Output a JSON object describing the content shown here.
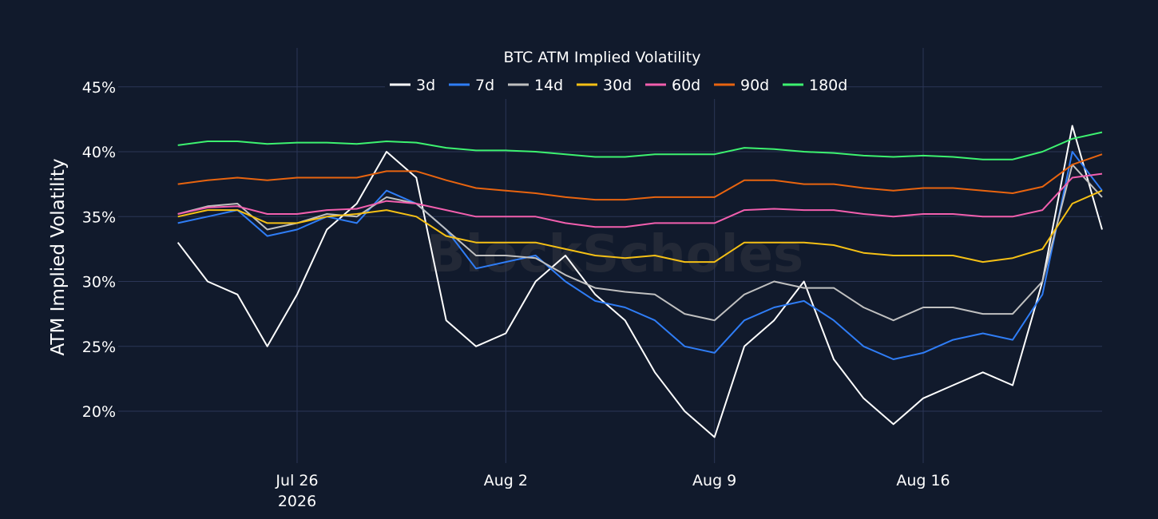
{
  "chart_data": {
    "type": "line",
    "title": "BTC ATM Implied Volatility",
    "ylabel": "ATM Implied Volatility",
    "xlabel": "",
    "watermark": "BlockScholes",
    "x_range": [
      "2026-07-20",
      "2026-08-22"
    ],
    "ylim": [
      0.16,
      0.48
    ],
    "y_ticks": [
      0.2,
      0.25,
      0.3,
      0.35,
      0.4,
      0.45
    ],
    "y_tick_labels": [
      "20%",
      "25%",
      "30%",
      "35%",
      "40%",
      "45%"
    ],
    "x_ticks": [
      "2026-07-26",
      "2026-08-02",
      "2026-08-09",
      "2026-08-16"
    ],
    "x_tick_labels": [
      {
        "line1": "Jul 26",
        "line2": "2026"
      },
      {
        "line1": "Aug 2",
        "line2": ""
      },
      {
        "line1": "Aug 9",
        "line2": ""
      },
      {
        "line1": "Aug 16",
        "line2": ""
      }
    ],
    "grid": true,
    "legend_position": "top-center",
    "x": [
      "2026-07-22",
      "2026-07-23",
      "2026-07-24",
      "2026-07-25",
      "2026-07-26",
      "2026-07-27",
      "2026-07-28",
      "2026-07-29",
      "2026-07-30",
      "2026-07-31",
      "2026-08-01",
      "2026-08-02",
      "2026-08-03",
      "2026-08-04",
      "2026-08-05",
      "2026-08-06",
      "2026-08-07",
      "2026-08-08",
      "2026-08-09",
      "2026-08-10",
      "2026-08-11",
      "2026-08-12",
      "2026-08-13",
      "2026-08-14",
      "2026-08-15",
      "2026-08-16",
      "2026-08-17",
      "2026-08-18",
      "2026-08-19",
      "2026-08-20",
      "2026-08-21",
      "2026-08-22"
    ],
    "series": [
      {
        "name": "3d",
        "color": "#ffffff",
        "values": [
          0.33,
          0.3,
          0.29,
          0.25,
          0.29,
          0.34,
          0.36,
          0.4,
          0.38,
          0.27,
          0.25,
          0.26,
          0.3,
          0.32,
          0.29,
          0.27,
          0.23,
          0.2,
          0.18,
          0.25,
          0.27,
          0.3,
          0.24,
          0.21,
          0.19,
          0.21,
          0.22,
          0.23,
          0.22,
          0.3,
          0.42,
          0.34
        ]
      },
      {
        "name": "7d",
        "color": "#2f7df6",
        "values": [
          0.345,
          0.35,
          0.355,
          0.335,
          0.34,
          0.35,
          0.345,
          0.37,
          0.36,
          0.34,
          0.31,
          0.315,
          0.32,
          0.3,
          0.285,
          0.28,
          0.27,
          0.25,
          0.245,
          0.27,
          0.28,
          0.285,
          0.27,
          0.25,
          0.24,
          0.245,
          0.255,
          0.26,
          0.255,
          0.29,
          0.4,
          0.37
        ]
      },
      {
        "name": "14d",
        "color": "#c0c0c0",
        "values": [
          0.352,
          0.358,
          0.36,
          0.34,
          0.345,
          0.352,
          0.35,
          0.365,
          0.36,
          0.34,
          0.32,
          0.32,
          0.318,
          0.305,
          0.295,
          0.292,
          0.29,
          0.275,
          0.27,
          0.29,
          0.3,
          0.295,
          0.295,
          0.28,
          0.27,
          0.28,
          0.28,
          0.275,
          0.275,
          0.3,
          0.39,
          0.365
        ]
      },
      {
        "name": "30d",
        "color": "#f5c015",
        "values": [
          0.35,
          0.355,
          0.355,
          0.345,
          0.345,
          0.35,
          0.352,
          0.355,
          0.35,
          0.335,
          0.33,
          0.33,
          0.33,
          0.325,
          0.32,
          0.318,
          0.32,
          0.315,
          0.315,
          0.33,
          0.33,
          0.33,
          0.328,
          0.322,
          0.32,
          0.32,
          0.32,
          0.315,
          0.318,
          0.325,
          0.36,
          0.37
        ]
      },
      {
        "name": "60d",
        "color": "#f25fae",
        "values": [
          0.352,
          0.357,
          0.358,
          0.352,
          0.352,
          0.355,
          0.356,
          0.362,
          0.36,
          0.355,
          0.35,
          0.35,
          0.35,
          0.345,
          0.342,
          0.342,
          0.345,
          0.345,
          0.345,
          0.355,
          0.356,
          0.355,
          0.355,
          0.352,
          0.35,
          0.352,
          0.352,
          0.35,
          0.35,
          0.355,
          0.38,
          0.383
        ]
      },
      {
        "name": "90d",
        "color": "#e8640f",
        "values": [
          0.375,
          0.378,
          0.38,
          0.378,
          0.38,
          0.38,
          0.38,
          0.385,
          0.385,
          0.378,
          0.372,
          0.37,
          0.368,
          0.365,
          0.363,
          0.363,
          0.365,
          0.365,
          0.365,
          0.378,
          0.378,
          0.375,
          0.375,
          0.372,
          0.37,
          0.372,
          0.372,
          0.37,
          0.368,
          0.373,
          0.39,
          0.398
        ]
      },
      {
        "name": "180d",
        "color": "#3df270",
        "values": [
          0.405,
          0.408,
          0.408,
          0.406,
          0.407,
          0.407,
          0.406,
          0.408,
          0.407,
          0.403,
          0.401,
          0.401,
          0.4,
          0.398,
          0.396,
          0.396,
          0.398,
          0.398,
          0.398,
          0.403,
          0.402,
          0.4,
          0.399,
          0.397,
          0.396,
          0.397,
          0.396,
          0.394,
          0.394,
          0.4,
          0.41,
          0.415
        ]
      }
    ]
  }
}
